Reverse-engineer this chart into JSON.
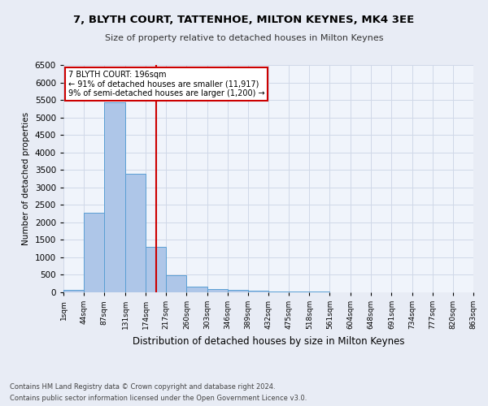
{
  "title1": "7, BLYTH COURT, TATTENHOE, MILTON KEYNES, MK4 3EE",
  "title2": "Size of property relative to detached houses in Milton Keynes",
  "xlabel": "Distribution of detached houses by size in Milton Keynes",
  "ylabel": "Number of detached properties",
  "footer1": "Contains HM Land Registry data © Crown copyright and database right 2024.",
  "footer2": "Contains public sector information licensed under the Open Government Licence v3.0.",
  "annotation_line1": "7 BLYTH COURT: 196sqm",
  "annotation_line2": "← 91% of detached houses are smaller (11,917)",
  "annotation_line3": "9% of semi-detached houses are larger (1,200) →",
  "property_size": 196,
  "bar_edges": [
    1,
    44,
    87,
    131,
    174,
    217,
    260,
    303,
    346,
    389,
    432,
    475,
    518,
    561,
    604,
    648,
    691,
    734,
    777,
    820,
    863
  ],
  "bar_heights": [
    70,
    2280,
    5430,
    3390,
    1310,
    480,
    160,
    90,
    75,
    45,
    30,
    20,
    15,
    10,
    8,
    5,
    4,
    3,
    2,
    1
  ],
  "bar_color": "#aec6e8",
  "bar_edge_color": "#5a9fd4",
  "vline_color": "#cc0000",
  "vline_x": 196,
  "annotation_box_color": "#ffffff",
  "annotation_box_edge": "#cc0000",
  "ylim": [
    0,
    6500
  ],
  "yticks": [
    0,
    500,
    1000,
    1500,
    2000,
    2500,
    3000,
    3500,
    4000,
    4500,
    5000,
    5500,
    6000,
    6500
  ],
  "grid_color": "#d0d8e8",
  "background_color": "#e8ecf5",
  "axes_background": "#f0f4fb"
}
